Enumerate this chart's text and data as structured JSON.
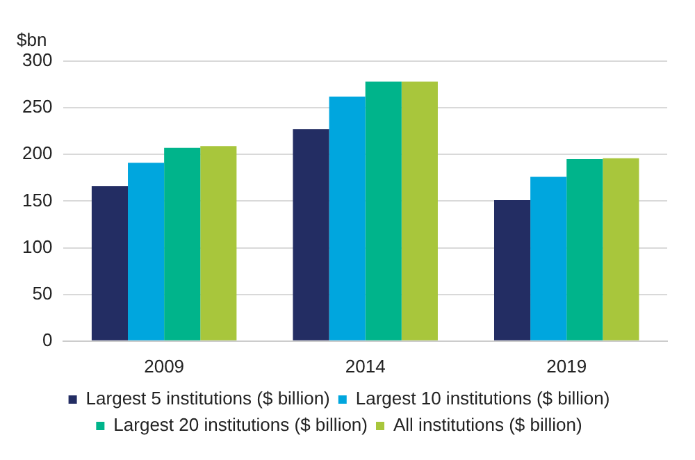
{
  "chart_data": {
    "type": "bar",
    "ylabel": "$bn",
    "categories": [
      "2009",
      "2014",
      "2019"
    ],
    "series": [
      {
        "name": "Largest 5 institutions ($ billion)",
        "color": "#232d63",
        "values": [
          166,
          227,
          151
        ]
      },
      {
        "name": "Largest 10 institutions ($ billion)",
        "color": "#00a6de",
        "values": [
          191,
          262,
          176
        ]
      },
      {
        "name": "Largest 20 institutions ($ billion)",
        "color": "#00b48b",
        "values": [
          207,
          278,
          195
        ]
      },
      {
        "name": "All institutions ($ billion)",
        "color": "#a8c63c",
        "values": [
          209,
          278,
          196
        ]
      }
    ],
    "ylim": [
      0,
      300
    ],
    "yticks": [
      0,
      50,
      100,
      150,
      200,
      250,
      300
    ],
    "grid": "y",
    "legend": "bottom"
  }
}
